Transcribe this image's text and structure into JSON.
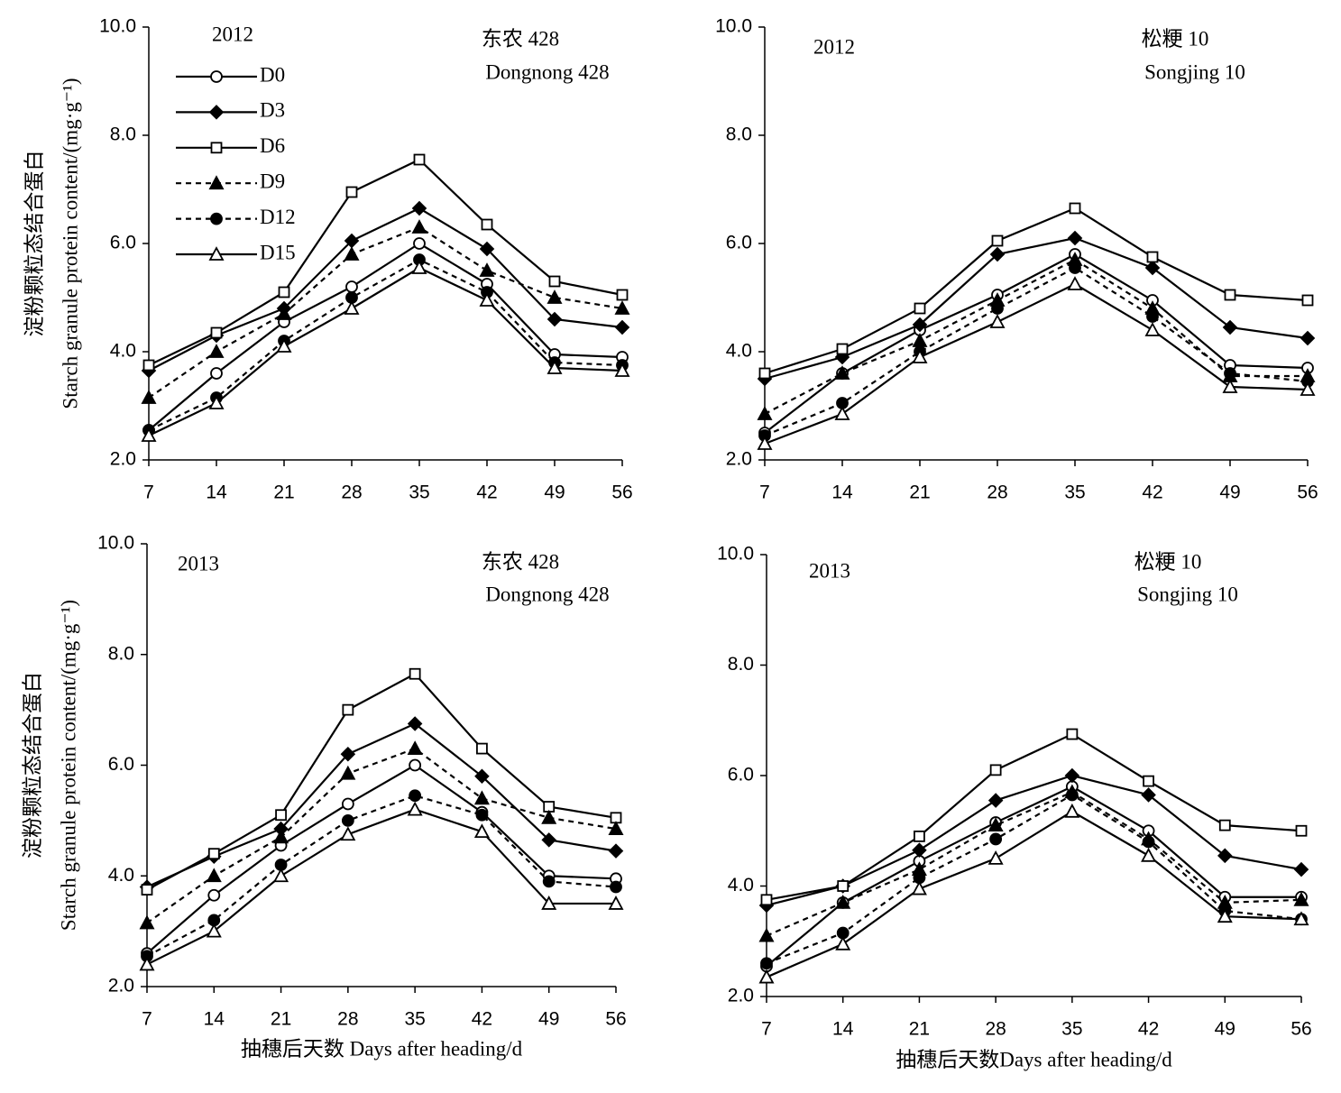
{
  "chart_data": [
    {
      "type": "line",
      "x": [
        7,
        14,
        21,
        28,
        35,
        42,
        49,
        56
      ],
      "xlim": [
        7,
        56
      ],
      "xticks": [
        7,
        14,
        21,
        28,
        35,
        42,
        49,
        56
      ],
      "ylim": [
        2,
        10
      ],
      "yticks": [
        {
          "value": 2,
          "label": "2.0"
        },
        {
          "value": 4,
          "label": "4.0"
        },
        {
          "value": 6,
          "label": "6.0"
        },
        {
          "value": 8,
          "label": "8.0"
        },
        {
          "value": 10,
          "label": "10.0"
        }
      ],
      "ylabel": [
        "淀粉颗粒态结合蛋白",
        "Starch granule protein content/(mg·g⁻¹)"
      ],
      "annotations": [
        "2012",
        "东农 428",
        "Dongnong 428"
      ],
      "legend": true,
      "legend_position": "upper left",
      "series": [
        {
          "name": "D0",
          "color": "#000000",
          "line_style": "solid",
          "marker": "circle-open",
          "values": [
            2.55,
            3.6,
            4.55,
            5.2,
            6.0,
            5.25,
            3.95,
            3.9
          ]
        },
        {
          "name": "D3",
          "color": "#000000",
          "line_style": "solid",
          "marker": "diamond-filled",
          "values": [
            3.65,
            4.3,
            4.8,
            6.05,
            6.65,
            5.9,
            4.6,
            4.45
          ]
        },
        {
          "name": "D6",
          "color": "#000000",
          "line_style": "solid",
          "marker": "square-open",
          "values": [
            3.75,
            4.35,
            5.1,
            6.95,
            7.55,
            6.35,
            5.3,
            5.05
          ]
        },
        {
          "name": "D9",
          "color": "#000000",
          "line_style": "dashed",
          "marker": "triangle-filled",
          "values": [
            3.15,
            4.0,
            4.7,
            5.8,
            6.3,
            5.5,
            5.0,
            4.8
          ]
        },
        {
          "name": "D12",
          "color": "#000000",
          "line_style": "dashed",
          "marker": "circle-filled",
          "values": [
            2.55,
            3.15,
            4.2,
            5.0,
            5.7,
            5.1,
            3.8,
            3.75
          ]
        },
        {
          "name": "D15",
          "color": "#000000",
          "line_style": "solid",
          "marker": "triangle-open",
          "values": [
            2.45,
            3.05,
            4.1,
            4.8,
            5.55,
            4.95,
            3.7,
            3.65
          ]
        }
      ]
    },
    {
      "type": "line",
      "x": [
        7,
        14,
        21,
        28,
        35,
        42,
        49,
        56
      ],
      "xlim": [
        7,
        56
      ],
      "xticks": [
        7,
        14,
        21,
        28,
        35,
        42,
        49,
        56
      ],
      "ylim": [
        2,
        10
      ],
      "yticks": [
        {
          "value": 2,
          "label": "2.0"
        },
        {
          "value": 4,
          "label": "4.0"
        },
        {
          "value": 6,
          "label": "6.0"
        },
        {
          "value": 8,
          "label": "8.0"
        },
        {
          "value": 10,
          "label": "10.0"
        }
      ],
      "annotations": [
        "2012",
        "松粳 10",
        "Songjing 10"
      ],
      "legend": false,
      "series": [
        {
          "name": "D0",
          "color": "#000000",
          "line_style": "solid",
          "marker": "circle-open",
          "values": [
            2.5,
            3.6,
            4.4,
            5.05,
            5.8,
            4.95,
            3.75,
            3.7
          ]
        },
        {
          "name": "D3",
          "color": "#000000",
          "line_style": "solid",
          "marker": "diamond-filled",
          "values": [
            3.5,
            3.9,
            4.5,
            5.8,
            6.1,
            5.55,
            4.45,
            4.25
          ]
        },
        {
          "name": "D6",
          "color": "#000000",
          "line_style": "solid",
          "marker": "square-open",
          "values": [
            3.6,
            4.05,
            4.8,
            6.05,
            6.65,
            5.75,
            5.05,
            4.95
          ]
        },
        {
          "name": "D9",
          "color": "#000000",
          "line_style": "dashed",
          "marker": "triangle-filled",
          "values": [
            2.85,
            3.6,
            4.2,
            4.95,
            5.7,
            4.8,
            3.55,
            3.55
          ]
        },
        {
          "name": "D12",
          "color": "#000000",
          "line_style": "dashed",
          "marker": "circle-filled",
          "values": [
            2.45,
            3.05,
            4.0,
            4.8,
            5.55,
            4.65,
            3.6,
            3.45
          ]
        },
        {
          "name": "D15",
          "color": "#000000",
          "line_style": "solid",
          "marker": "triangle-open",
          "values": [
            2.3,
            2.85,
            3.9,
            4.55,
            5.25,
            4.4,
            3.35,
            3.3
          ]
        }
      ]
    },
    {
      "type": "line",
      "x": [
        7,
        14,
        21,
        28,
        35,
        42,
        49,
        56
      ],
      "xlim": [
        7,
        56
      ],
      "xticks": [
        7,
        14,
        21,
        28,
        35,
        42,
        49,
        56
      ],
      "ylim": [
        2,
        10
      ],
      "yticks": [
        {
          "value": 2,
          "label": "2.0"
        },
        {
          "value": 4,
          "label": "4.0"
        },
        {
          "value": 6,
          "label": "6.0"
        },
        {
          "value": 8,
          "label": "8.0"
        },
        {
          "value": 10,
          "label": "10.0"
        }
      ],
      "xlabel": "抽穗后天数 Days after heading/d",
      "ylabel": [
        "淀粉颗粒态结合蛋白",
        "Starch granule protein content/(mg·g⁻¹)"
      ],
      "annotations": [
        "2013",
        "东农 428",
        "Dongnong 428"
      ],
      "legend": false,
      "series": [
        {
          "name": "D0",
          "color": "#000000",
          "line_style": "solid",
          "marker": "circle-open",
          "values": [
            2.6,
            3.65,
            4.55,
            5.3,
            6.0,
            5.15,
            4.0,
            3.95
          ]
        },
        {
          "name": "D3",
          "color": "#000000",
          "line_style": "solid",
          "marker": "diamond-filled",
          "values": [
            3.8,
            4.35,
            4.85,
            6.2,
            6.75,
            5.8,
            4.65,
            4.45
          ]
        },
        {
          "name": "D6",
          "color": "#000000",
          "line_style": "solid",
          "marker": "square-open",
          "values": [
            3.75,
            4.4,
            5.1,
            7.0,
            7.65,
            6.3,
            5.25,
            5.05
          ]
        },
        {
          "name": "D9",
          "color": "#000000",
          "line_style": "dashed",
          "marker": "triangle-filled",
          "values": [
            3.15,
            4.0,
            4.7,
            5.85,
            6.3,
            5.4,
            5.05,
            4.85
          ]
        },
        {
          "name": "D12",
          "color": "#000000",
          "line_style": "dashed",
          "marker": "circle-filled",
          "values": [
            2.55,
            3.2,
            4.2,
            5.0,
            5.45,
            5.1,
            3.9,
            3.8
          ]
        },
        {
          "name": "D15",
          "color": "#000000",
          "line_style": "solid",
          "marker": "triangle-open",
          "values": [
            2.4,
            3.0,
            4.0,
            4.75,
            5.2,
            4.8,
            3.5,
            3.5
          ]
        }
      ]
    },
    {
      "type": "line",
      "x": [
        7,
        14,
        21,
        28,
        35,
        42,
        49,
        56
      ],
      "xlim": [
        7,
        56
      ],
      "xticks": [
        7,
        14,
        21,
        28,
        35,
        42,
        49,
        56
      ],
      "ylim": [
        2,
        10
      ],
      "yticks": [
        {
          "value": 2,
          "label": "2.0"
        },
        {
          "value": 4,
          "label": "4.0"
        },
        {
          "value": 6,
          "label": "6.0"
        },
        {
          "value": 8,
          "label": "8.0"
        },
        {
          "value": 10,
          "label": "10.0"
        }
      ],
      "xlabel": "抽穗后天数Days after heading/d",
      "annotations": [
        "2013",
        "松粳 10",
        "Songjing 10"
      ],
      "legend": false,
      "series": [
        {
          "name": "D0",
          "color": "#000000",
          "line_style": "solid",
          "marker": "circle-open",
          "values": [
            2.55,
            3.7,
            4.45,
            5.15,
            5.8,
            5.0,
            3.8,
            3.8
          ]
        },
        {
          "name": "D3",
          "color": "#000000",
          "line_style": "solid",
          "marker": "diamond-filled",
          "values": [
            3.65,
            4.0,
            4.65,
            5.55,
            6.0,
            5.65,
            4.55,
            4.3
          ]
        },
        {
          "name": "D6",
          "color": "#000000",
          "line_style": "solid",
          "marker": "square-open",
          "values": [
            3.75,
            4.0,
            4.9,
            6.1,
            6.75,
            5.9,
            5.1,
            5.0
          ]
        },
        {
          "name": "D9",
          "color": "#000000",
          "line_style": "dashed",
          "marker": "triangle-filled",
          "values": [
            3.1,
            3.7,
            4.3,
            5.1,
            5.7,
            4.85,
            3.7,
            3.75
          ]
        },
        {
          "name": "D12",
          "color": "#000000",
          "line_style": "dashed",
          "marker": "circle-filled",
          "values": [
            2.6,
            3.15,
            4.15,
            4.85,
            5.65,
            4.8,
            3.55,
            3.4
          ]
        },
        {
          "name": "D15",
          "color": "#000000",
          "line_style": "solid",
          "marker": "triangle-open",
          "values": [
            2.35,
            2.95,
            3.95,
            4.5,
            5.35,
            4.55,
            3.45,
            3.4
          ]
        }
      ]
    }
  ]
}
